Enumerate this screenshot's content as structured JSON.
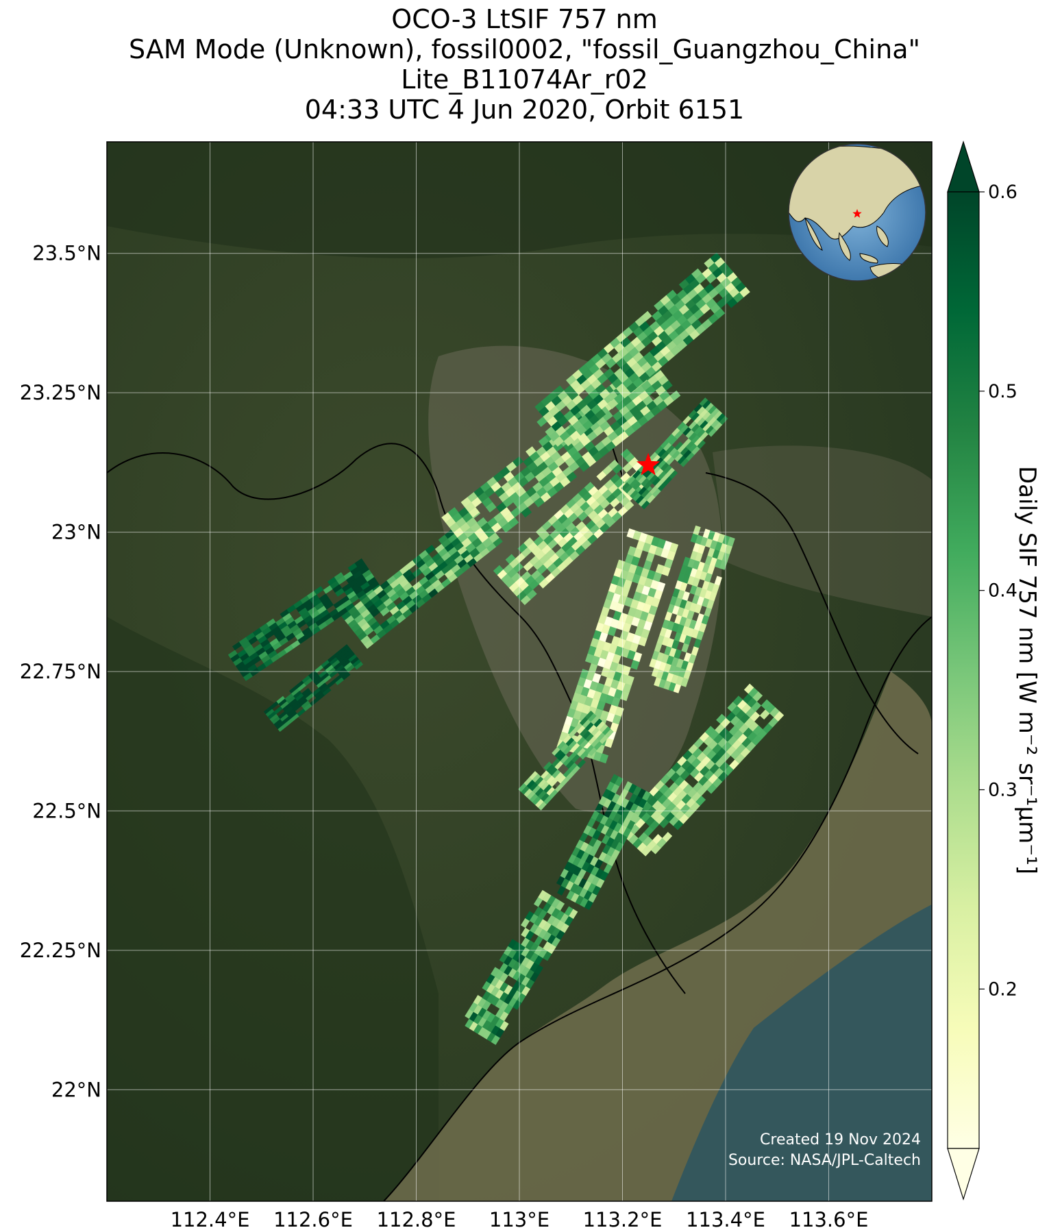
{
  "title": {
    "line1": "OCO-3 LtSIF 757 nm",
    "line2": "SAM Mode (Unknown), fossil0002, \"fossil_Guangzhou_China\"",
    "line3": "Lite_B11074Ar_r02",
    "line4": "04:33 UTC 4 Jun 2020, Orbit 6151"
  },
  "map": {
    "lon_range": [
      112.2,
      113.8
    ],
    "lat_range": [
      21.8,
      23.7
    ],
    "lon_ticks": [
      {
        "value": 112.4,
        "label": "112.4°E"
      },
      {
        "value": 112.6,
        "label": "112.6°E"
      },
      {
        "value": 112.8,
        "label": "112.8°E"
      },
      {
        "value": 113.0,
        "label": "113°E"
      },
      {
        "value": 113.2,
        "label": "113.2°E"
      },
      {
        "value": 113.4,
        "label": "113.4°E"
      },
      {
        "value": 113.6,
        "label": "113.6°E"
      }
    ],
    "lat_ticks": [
      {
        "value": 22.0,
        "label": "22°N"
      },
      {
        "value": 22.25,
        "label": "22.25°N"
      },
      {
        "value": 22.5,
        "label": "22.5°N"
      },
      {
        "value": 22.75,
        "label": "22.75°N"
      },
      {
        "value": 23.0,
        "label": "23°N"
      },
      {
        "value": 23.25,
        "label": "23.25°N"
      },
      {
        "value": 23.5,
        "label": "23.5°N"
      }
    ],
    "target": {
      "lon": 113.25,
      "lat": 23.12,
      "marker": "red-star",
      "color": "#ff0000"
    },
    "background": "satellite-imagery",
    "inset_globe": {
      "center_lon": 113.25,
      "center_lat": 23.12,
      "marker": "red-star"
    }
  },
  "colorbar": {
    "label": "Daily SIF 757 nm [W m⁻² sr⁻¹µm⁻¹]",
    "colormap": "YlGn",
    "min": 0.12,
    "max": 0.6,
    "extend": "both",
    "ticks": [
      {
        "value": 0.2,
        "label": "0.2"
      },
      {
        "value": 0.3,
        "label": "0.3"
      },
      {
        "value": 0.4,
        "label": "0.4"
      },
      {
        "value": 0.5,
        "label": "0.5"
      },
      {
        "value": 0.6,
        "label": "0.6"
      }
    ]
  },
  "credits": {
    "created": "Created 19 Nov 2024",
    "source": "Source: NASA/JPL-Caltech"
  },
  "swaths": [
    {
      "start": [
        112.45,
        22.76
      ],
      "end": [
        112.72,
        22.93
      ],
      "across": 0.07,
      "value": 0.55
    },
    {
      "start": [
        112.52,
        22.66
      ],
      "end": [
        112.68,
        22.78
      ],
      "across": 0.05,
      "value": 0.58
    },
    {
      "start": [
        112.68,
        22.82
      ],
      "end": [
        112.94,
        23.01
      ],
      "across": 0.08,
      "value": 0.44
    },
    {
      "start": [
        112.88,
        22.99
      ],
      "end": [
        113.28,
        23.28
      ],
      "across": 0.1,
      "value": 0.36
    },
    {
      "start": [
        113.05,
        23.18
      ],
      "end": [
        113.42,
        23.47
      ],
      "across": 0.1,
      "value": 0.38
    },
    {
      "start": [
        112.98,
        22.9
      ],
      "end": [
        113.24,
        23.12
      ],
      "across": 0.09,
      "value": 0.31
    },
    {
      "start": [
        113.22,
        23.06
      ],
      "end": [
        113.38,
        23.22
      ],
      "across": 0.06,
      "value": 0.42
    },
    {
      "start": [
        113.12,
        22.6
      ],
      "end": [
        113.26,
        22.99
      ],
      "across": 0.1,
      "value": 0.27
    },
    {
      "start": [
        113.28,
        22.72
      ],
      "end": [
        113.38,
        23.0
      ],
      "across": 0.08,
      "value": 0.3
    },
    {
      "start": [
        113.02,
        22.52
      ],
      "end": [
        113.16,
        22.66
      ],
      "across": 0.06,
      "value": 0.39
    },
    {
      "start": [
        113.22,
        22.44
      ],
      "end": [
        113.48,
        22.7
      ],
      "across": 0.09,
      "value": 0.35
    },
    {
      "start": [
        113.1,
        22.34
      ],
      "end": [
        113.22,
        22.55
      ],
      "across": 0.08,
      "value": 0.45
    },
    {
      "start": [
        112.92,
        22.1
      ],
      "end": [
        113.08,
        22.34
      ],
      "across": 0.08,
      "value": 0.42
    }
  ]
}
